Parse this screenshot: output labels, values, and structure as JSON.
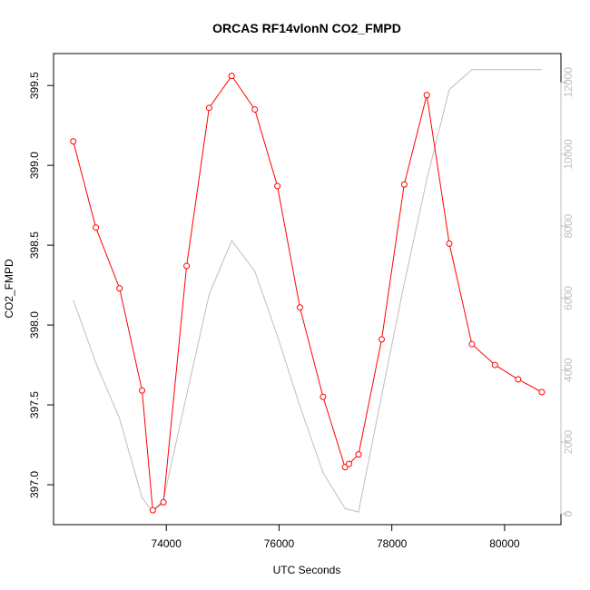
{
  "chart_data": {
    "type": "line",
    "title": "ORCAS RF14vlonN CO2_FMPD",
    "xlabel": "UTC Seconds",
    "ylabel": "CO2_FMPD",
    "xlim": [
      72000,
      81000
    ],
    "ylim": [
      396.75,
      399.7
    ],
    "y2lim": [
      -300,
      12800
    ],
    "x_ticks": [
      74000,
      76000,
      78000,
      80000
    ],
    "x_tick_labels": [
      "74000",
      "76000",
      "78000",
      "80000"
    ],
    "y_ticks": [
      397.0,
      397.5,
      398.0,
      398.5,
      399.0,
      399.5
    ],
    "y_tick_labels": [
      "397.0",
      "397.5",
      "398.0",
      "398.5",
      "399.0",
      "399.5"
    ],
    "y2_ticks": [
      0,
      2000,
      4000,
      6000,
      8000,
      10000,
      12000
    ],
    "y2_tick_labels": [
      "0",
      "2000",
      "4000",
      "6000",
      "8000",
      "10000",
      "12000"
    ],
    "grid": false,
    "colors": {
      "co2": "#ff0000",
      "secondary": "#bebebe",
      "axes": "#000000"
    },
    "series": [
      {
        "axis": "left",
        "style": "line-with-open-circles",
        "color": "#ff0000",
        "x": [
          72350,
          72750,
          73170,
          73570,
          73760,
          73950,
          74360,
          74760,
          75160,
          75570,
          75970,
          76370,
          76780,
          77170,
          77240,
          77410,
          77820,
          78220,
          78620,
          79020,
          79420,
          79830,
          80240,
          80660
        ],
        "y": [
          399.15,
          398.61,
          398.23,
          397.59,
          396.84,
          396.89,
          398.37,
          399.36,
          399.56,
          399.35,
          398.87,
          398.11,
          397.55,
          397.11,
          397.13,
          397.19,
          397.91,
          398.88,
          399.44,
          398.51,
          397.88,
          397.75,
          397.66,
          397.58
        ]
      },
      {
        "axis": "right",
        "style": "line",
        "color": "#bebebe",
        "x": [
          72350,
          72750,
          73170,
          73570,
          73760,
          73950,
          74360,
          74760,
          75160,
          75570,
          75970,
          76370,
          76780,
          77170,
          77410,
          77820,
          78220,
          78620,
          79020,
          79420,
          79830,
          80240,
          80660
        ],
        "y": [
          5950,
          4200,
          2650,
          450,
          50,
          400,
          3300,
          6100,
          7600,
          6750,
          4950,
          3000,
          1150,
          150,
          50,
          3300,
          6400,
          9300,
          11800,
          12350,
          12350,
          12350,
          12350
        ]
      }
    ]
  }
}
